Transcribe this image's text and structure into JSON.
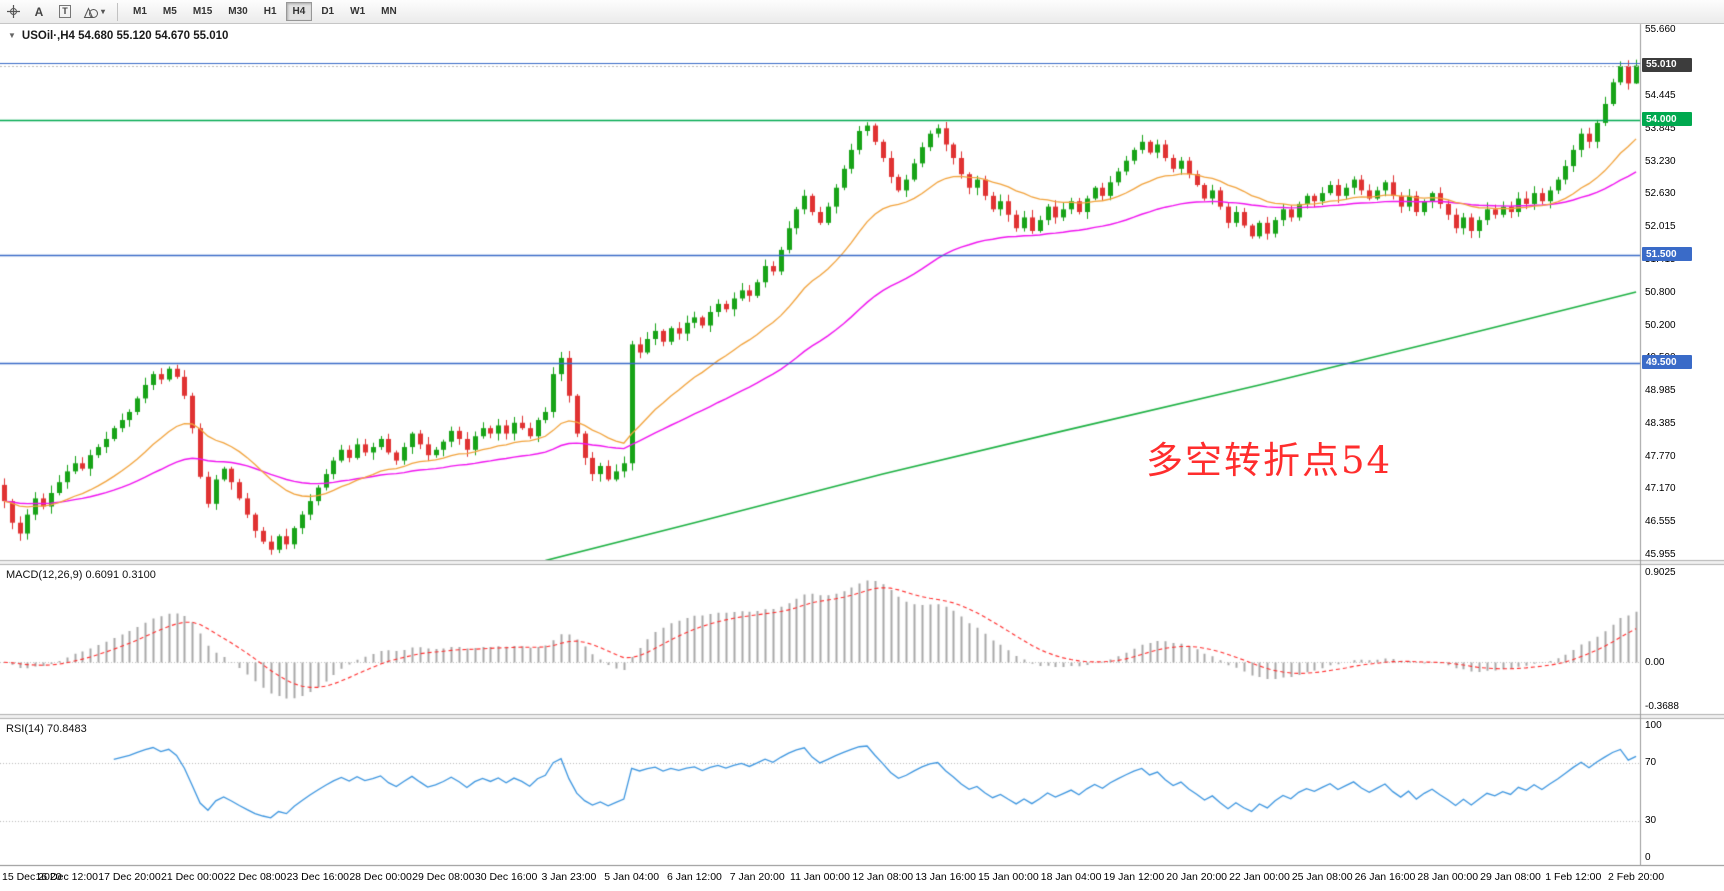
{
  "toolbar": {
    "tools": {
      "text_label": "A",
      "boxed_label": "T",
      "shapes_caret": "▾"
    },
    "timeframes": [
      "M1",
      "M5",
      "M15",
      "M30",
      "H1",
      "H4",
      "D1",
      "W1",
      "MN"
    ],
    "active_timeframe": "H4"
  },
  "chart": {
    "title": "USOil·,H4 54.680 55.120 54.670 55.010",
    "symbol": "USOil",
    "period": "H4",
    "annotation": {
      "text": "多空转折点54",
      "color": "#ff2d2d"
    }
  },
  "chart_data": {
    "type": "candlestick",
    "symbol": "USOil",
    "timeframe": "H4",
    "ylim": [
      45.86,
      55.78
    ],
    "first_open": 47.25,
    "last_ohlc": [
      54.68,
      55.12,
      54.67,
      55.01
    ],
    "closes": [
      46.95,
      46.55,
      46.35,
      46.7,
      47.0,
      46.85,
      47.1,
      47.3,
      47.5,
      47.65,
      47.55,
      47.8,
      47.95,
      48.1,
      48.3,
      48.45,
      48.6,
      48.85,
      49.1,
      49.3,
      49.2,
      49.4,
      49.25,
      48.9,
      48.3,
      47.4,
      46.9,
      47.35,
      47.55,
      47.3,
      47.0,
      46.7,
      46.4,
      46.2,
      46.05,
      46.3,
      46.15,
      46.45,
      46.7,
      46.95,
      47.2,
      47.45,
      47.7,
      47.9,
      47.75,
      48.0,
      47.85,
      47.95,
      48.1,
      47.85,
      47.7,
      47.95,
      48.2,
      48.0,
      47.8,
      47.9,
      48.05,
      48.25,
      48.1,
      47.9,
      48.15,
      48.3,
      48.2,
      48.35,
      48.2,
      48.4,
      48.3,
      48.15,
      48.45,
      48.6,
      49.3,
      49.6,
      48.9,
      48.2,
      47.75,
      47.45,
      47.6,
      47.35,
      47.5,
      47.65,
      49.85,
      49.7,
      49.95,
      50.1,
      49.9,
      50.15,
      50.05,
      50.25,
      50.35,
      50.2,
      50.45,
      50.6,
      50.5,
      50.7,
      50.85,
      50.75,
      51.0,
      51.3,
      51.2,
      51.6,
      52.0,
      52.35,
      52.6,
      52.3,
      52.1,
      52.4,
      52.75,
      53.1,
      53.45,
      53.8,
      53.9,
      53.6,
      53.3,
      52.95,
      52.7,
      52.9,
      53.2,
      53.5,
      53.75,
      53.85,
      53.55,
      53.3,
      53.0,
      52.75,
      52.9,
      52.6,
      52.35,
      52.5,
      52.25,
      52.0,
      52.2,
      51.95,
      52.15,
      52.4,
      52.2,
      52.35,
      52.5,
      52.3,
      52.55,
      52.75,
      52.6,
      52.85,
      53.05,
      53.25,
      53.45,
      53.6,
      53.4,
      53.55,
      53.3,
      53.1,
      53.25,
      53.0,
      52.8,
      52.55,
      52.7,
      52.4,
      52.1,
      52.3,
      52.05,
      51.85,
      52.1,
      51.9,
      52.15,
      52.35,
      52.2,
      52.45,
      52.6,
      52.5,
      52.65,
      52.8,
      52.6,
      52.75,
      52.9,
      52.7,
      52.55,
      52.7,
      52.85,
      52.6,
      52.4,
      52.6,
      52.3,
      52.5,
      52.65,
      52.45,
      52.25,
      52.0,
      52.2,
      51.95,
      52.15,
      52.35,
      52.25,
      52.4,
      52.3,
      52.55,
      52.45,
      52.65,
      52.5,
      52.7,
      52.9,
      53.15,
      53.45,
      53.75,
      53.6,
      53.95,
      54.3,
      54.7,
      55.0,
      54.68,
      55.01
    ],
    "label_every_n_bars": 8,
    "x_labels": [
      "15 Dec 2020",
      "16 Dec 12:00",
      "17 Dec 20:00",
      "21 Dec 00:00",
      "22 Dec 08:00",
      "23 Dec 16:00",
      "28 Dec 00:00",
      "29 Dec 08:00",
      "30 Dec 16:00",
      "3 Jan 23:00",
      "5 Jan 04:00",
      "6 Jan 12:00",
      "7 Jan 20:00",
      "11 Jan 00:00",
      "12 Jan 08:00",
      "13 Jan 16:00",
      "15 Jan 00:00",
      "18 Jan 04:00",
      "19 Jan 12:00",
      "20 Jan 20:00",
      "22 Jan 00:00",
      "25 Jan 08:00",
      "26 Jan 16:00",
      "28 Jan 00:00",
      "29 Jan 08:00",
      "1 Feb 12:00",
      "2 Feb 20:00"
    ],
    "y_axis_labels": [
      "55.660",
      "54.445",
      "53.845",
      "53.230",
      "52.630",
      "52.015",
      "51.415",
      "50.800",
      "50.200",
      "49.590",
      "48.985",
      "48.385",
      "47.770",
      "47.170",
      "46.555",
      "45.955"
    ],
    "price_tags": [
      {
        "label": "55.010",
        "price": 55.01,
        "bg": "#3c3c3c"
      },
      {
        "label": "54.000",
        "price": 54.0,
        "bg": "#00a94f"
      },
      {
        "label": "51.500",
        "price": 51.5,
        "bg": "#3a6bc8"
      },
      {
        "label": "49.500",
        "price": 49.5,
        "bg": "#3a6bc8"
      }
    ],
    "hlines": [
      {
        "price": 55.06,
        "color": "#3a6bc8",
        "width": 1.2
      },
      {
        "price": 54.0,
        "color": "#00a94f",
        "width": 1.5
      },
      {
        "price": 51.5,
        "color": "#3a6bc8",
        "width": 1.5
      },
      {
        "price": 49.5,
        "color": "#3a6bc8",
        "width": 1.5
      }
    ],
    "candle_colors": {
      "up": "#17a317",
      "down": "#e03232"
    },
    "moving_averages": [
      {
        "name": "ma-fast",
        "color": "#f2a33c",
        "period": 20
      },
      {
        "name": "ma-medium",
        "color": "#f012f0",
        "period": 50
      },
      {
        "name": "ma-slow",
        "color": "#1db143",
        "points": [
          [
            69,
            45.85
          ],
          [
            88,
            46.55
          ],
          [
            112,
            47.45
          ],
          [
            135,
            48.25
          ],
          [
            160,
            49.1
          ],
          [
            184,
            49.95
          ],
          [
            208,
            50.82
          ]
        ]
      }
    ],
    "indicators": {
      "macd": {
        "label": "MACD(12,26,9) 0.6091 0.3100",
        "params": [
          12,
          26,
          9
        ],
        "values": [
          0.6091,
          0.31
        ],
        "axis_labels": [
          "0.9025",
          "0.00",
          "-0.3688"
        ],
        "histogram_color": "#a9a9a9",
        "signal_color": "#ff2e2e"
      },
      "rsi": {
        "label": "RSI(14) 70.8483",
        "period": 14,
        "value": 70.8483,
        "axis_labels": [
          "100",
          "70",
          "30",
          "0"
        ],
        "levels": [
          70,
          30
        ],
        "line_color": "#3d96e0"
      }
    }
  }
}
